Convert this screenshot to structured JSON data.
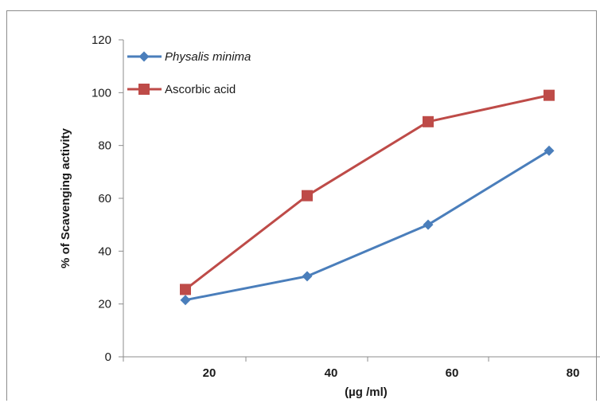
{
  "chart_data": {
    "type": "line",
    "title": "",
    "xlabel": "(µg /ml)",
    "ylabel": "% of Scavenging activity",
    "categories": [
      "20",
      "40",
      "60",
      "80"
    ],
    "ylim": [
      0,
      120
    ],
    "yticks": [
      "0",
      "20",
      "40",
      "60",
      "80",
      "100",
      "120"
    ],
    "grid": false,
    "legend_position": "top-left",
    "series": [
      {
        "name": "Physalis minima",
        "values": [
          21.5,
          30.5,
          50,
          78
        ],
        "color": "#4a7ebb",
        "marker": "diamond",
        "italic": true
      },
      {
        "name": "Ascorbic acid",
        "values": [
          25.5,
          61,
          89,
          99
        ],
        "color": "#be4b48",
        "marker": "square",
        "italic": false
      }
    ]
  }
}
